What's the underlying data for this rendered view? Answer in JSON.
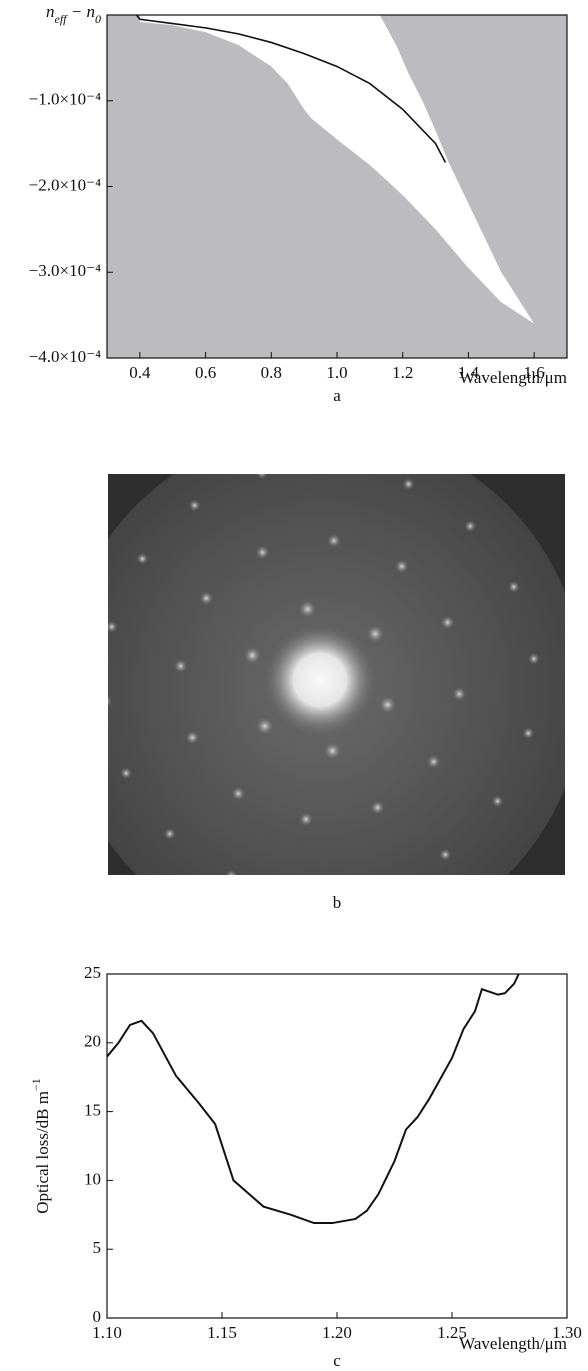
{
  "chart_data": [
    {
      "type": "area",
      "caption": "a",
      "x_label": "Wavelength/μm",
      "y_label": [
        "n",
        "eff",
        " − n",
        "0"
      ],
      "background": "#bcbcc0",
      "xlim": [
        0.3,
        1.7
      ],
      "xticks": [
        0.4,
        0.6,
        0.8,
        {
          "value": 1,
          "label": "1.0"
        },
        1.2,
        1.4,
        1.6
      ],
      "ylim": [
        -0.0004,
        0
      ],
      "yticks": [
        {
          "value": -0.0001,
          "label": "−1.0×10⁻⁴"
        },
        {
          "value": -0.0002,
          "label": "−2.0×10⁻⁴"
        },
        {
          "value": -0.0003,
          "label": "−3.0×10⁻⁴"
        },
        {
          "value": -0.0004,
          "label": "−4.0×10⁻⁴"
        }
      ],
      "series": [
        {
          "kind": "fill",
          "color": "#ffffff",
          "x": [
            0.4,
            0.5,
            0.6,
            0.7,
            0.8,
            0.85,
            0.9,
            0.92,
            1.0,
            1.1,
            1.2,
            1.3,
            1.4,
            1.5,
            1.6
          ],
          "values": [
            -8e-06,
            -1.2e-05,
            -2e-05,
            -3.5e-05,
            -6e-05,
            -8e-05,
            -0.00011,
            -0.00012,
            -0.000145,
            -0.000175,
            -0.00021,
            -0.00025,
            -0.000295,
            -0.000335,
            -0.00036
          ]
        },
        {
          "kind": "fill",
          "color": "#ffffff",
          "x": [
            1.13,
            1.18,
            1.22,
            1.26,
            1.3,
            1.34,
            1.4,
            1.45,
            1.5,
            1.55,
            1.6
          ],
          "values": [
            0,
            -3.5e-05,
            -7e-05,
            -0.0001,
            -0.000135,
            -0.000172,
            -0.00022,
            -0.00026,
            -0.0003,
            -0.00033,
            -0.00036
          ]
        },
        {
          "kind": "line",
          "color": "#111111",
          "x": [
            0.39,
            0.4,
            0.5,
            0.6,
            0.7,
            0.8,
            0.9,
            1.0,
            1.1,
            1.2,
            1.3,
            1.33
          ],
          "values": [
            0,
            -5e-06,
            -1e-05,
            -1.5e-05,
            -2.2e-05,
            -3.2e-05,
            -4.5e-05,
            -6e-05,
            -8e-05,
            -0.00011,
            -0.00015,
            -0.000172
          ]
        }
      ]
    },
    {
      "type": "image",
      "caption": "b"
    },
    {
      "type": "line",
      "caption": "c",
      "x_label": "Wavelength/μm",
      "y_label": [
        "Optical loss/dB m",
        "−1"
      ],
      "color": "#111111",
      "xlim": [
        1.1,
        1.3
      ],
      "xticks": [
        {
          "value": 1.1,
          "label": "1.10"
        },
        1.15,
        {
          "value": 1.2,
          "label": "1.20"
        },
        1.25,
        {
          "value": 1.3,
          "label": "1.30"
        }
      ],
      "ylim": [
        0,
        25
      ],
      "yticks": [
        0,
        5,
        10,
        15,
        20,
        25
      ],
      "x": [
        1.1,
        1.105,
        1.11,
        1.115,
        1.12,
        1.13,
        1.14,
        1.147,
        1.155,
        1.168,
        1.18,
        1.19,
        1.198,
        1.208,
        1.213,
        1.218,
        1.225,
        1.23,
        1.235,
        1.24,
        1.25,
        1.255,
        1.26,
        1.263,
        1.27,
        1.273,
        1.277,
        1.279
      ],
      "values": [
        19.0,
        20.0,
        21.3,
        21.6,
        20.7,
        17.6,
        15.6,
        14.1,
        10.0,
        8.1,
        7.5,
        6.9,
        6.9,
        7.2,
        7.8,
        9.0,
        11.4,
        13.7,
        14.6,
        15.9,
        18.9,
        21.0,
        22.3,
        23.9,
        23.5,
        23.6,
        24.3,
        25.0
      ]
    }
  ]
}
